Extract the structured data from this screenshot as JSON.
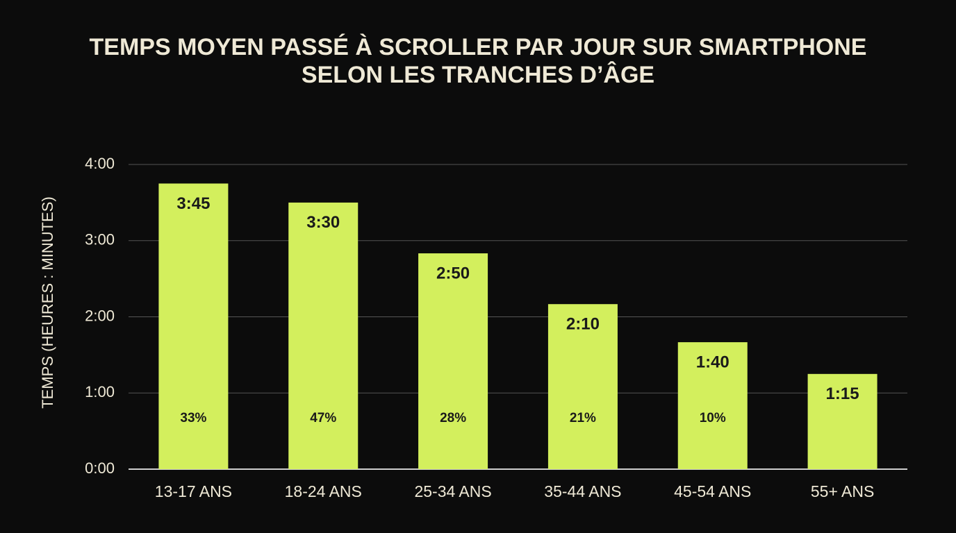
{
  "chart_data": {
    "type": "bar",
    "title": [
      "TEMPS MOYEN PASSÉ À SCROLLER PAR JOUR SUR SMARTPHONE",
      "SELON LES TRANCHES D’ÂGE"
    ],
    "y_label": "TEMPS (HEURES : MINUTES)",
    "categories": [
      "13-17 ANS",
      "18-24 ANS",
      "25-34 ANS",
      "35-44 ANS",
      "45-54 ANS",
      "55+ ANS"
    ],
    "values": [
      225,
      210,
      170,
      130,
      100,
      75
    ],
    "value_labels": [
      "3:45",
      "3:30",
      "2:50",
      "2:10",
      "1:40",
      "1:15"
    ],
    "shares": {
      "values": [
        33,
        47,
        28,
        21,
        10,
        null
      ],
      "labels": [
        "33%",
        "47%",
        "28%",
        "21%",
        "10%",
        null
      ]
    },
    "color": "#d3ef5d",
    "ylim": [
      0,
      240
    ],
    "yticks": [
      {
        "value": 0,
        "label": "0:00"
      },
      {
        "value": 60,
        "label": "1:00"
      },
      {
        "value": 120,
        "label": "2:00"
      },
      {
        "value": 180,
        "label": "3:00"
      },
      {
        "value": 240,
        "label": "4:00"
      }
    ],
    "grid": true
  }
}
